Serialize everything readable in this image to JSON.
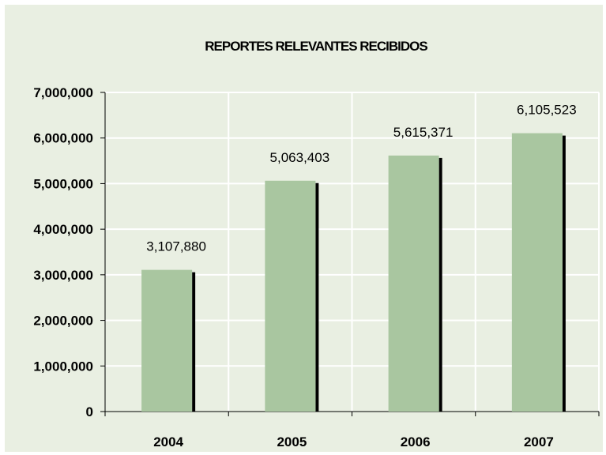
{
  "chart_data": {
    "type": "bar",
    "title": "REPORTES RELEVANTES RECIBIDOS",
    "xlabel": "",
    "ylabel": "",
    "categories": [
      "2004",
      "2005",
      "2006",
      "2007"
    ],
    "values": [
      3107880,
      5063403,
      5615371,
      6105523
    ],
    "data_labels": [
      "3,107,880",
      "5,063,403",
      "5,615,371",
      "6,105,523"
    ],
    "ylim": [
      0,
      7000000
    ],
    "yticks": [
      0,
      1000000,
      2000000,
      3000000,
      4000000,
      5000000,
      6000000,
      7000000
    ],
    "ytick_labels": [
      "0",
      "1,000,000",
      "2,000,000",
      "3,000,000",
      "4,000,000",
      "5,000,000",
      "6,000,000",
      "7,000,000"
    ],
    "grid": true,
    "legend": "none",
    "colors": {
      "background": "#e9efe2",
      "bar": "#a9c6a0",
      "bar_shadow": "#000000",
      "grid": "#ffffff",
      "axis": "#000000"
    }
  }
}
